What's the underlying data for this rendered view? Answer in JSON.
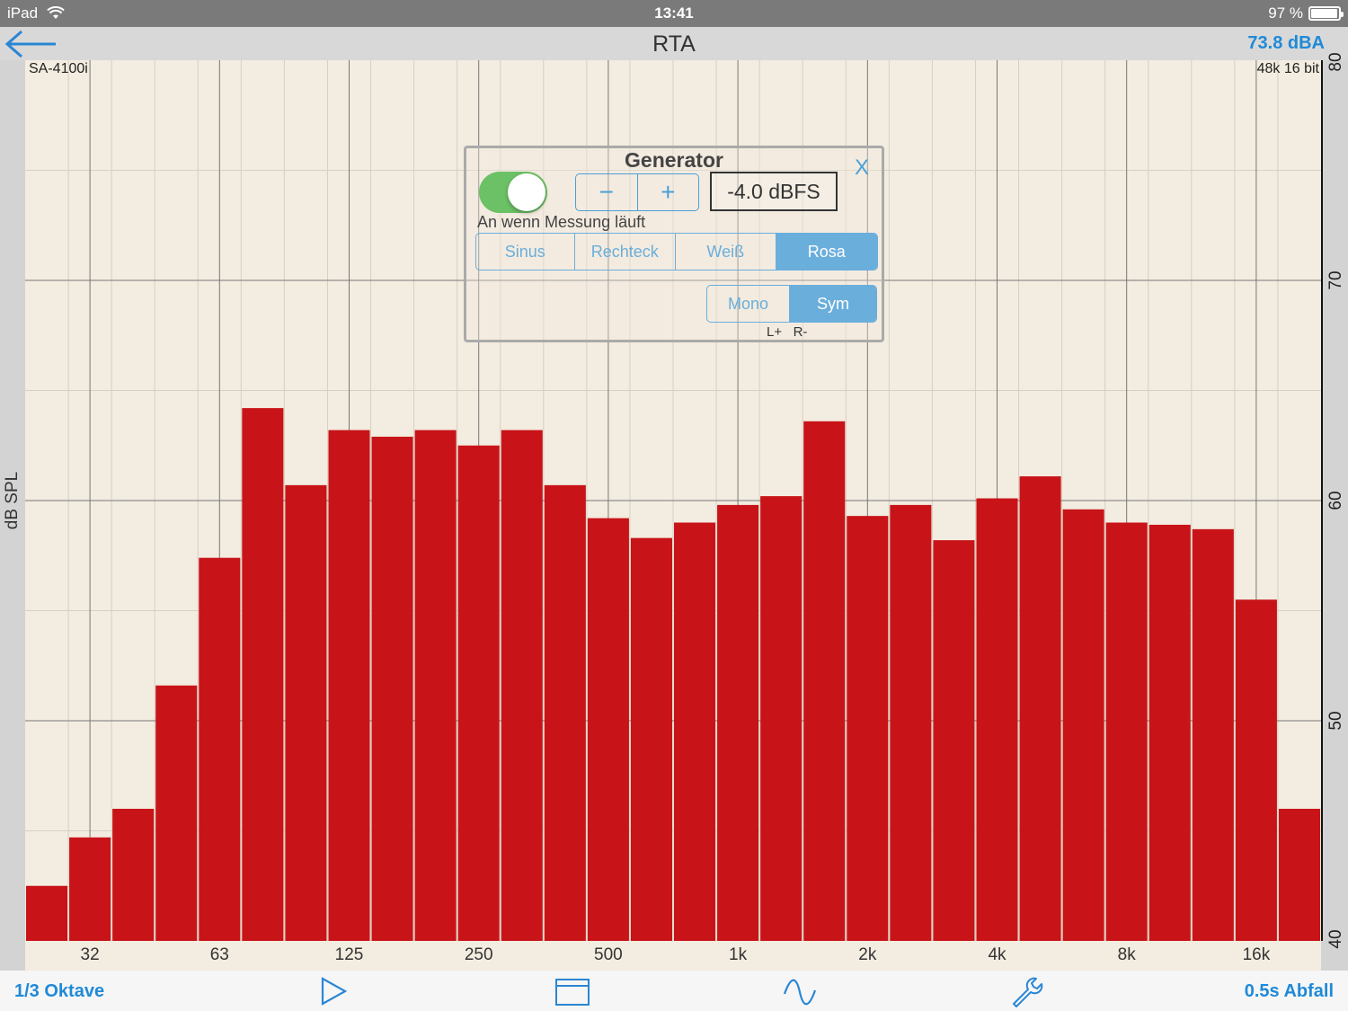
{
  "status_bar": {
    "device": "iPad",
    "time": "13:41",
    "battery": "97 %",
    "battery_level": 0.97
  },
  "nav": {
    "title": "RTA",
    "level": "73.8 dBA"
  },
  "plot": {
    "device_label": "SA-4100i",
    "format_label": "48k 16 bit",
    "y_axis_label": "dB SPL"
  },
  "generator": {
    "title": "Generator",
    "close_label": "X",
    "enabled": true,
    "on_label": "An wenn Messung läuft",
    "minus": "−",
    "plus": "+",
    "level": "-4.0 dBFS",
    "waveforms": [
      "Sinus",
      "Rechteck",
      "Weiß",
      "Rosa"
    ],
    "selected_waveform": "Rosa",
    "channels": [
      "Mono",
      "Sym"
    ],
    "selected_channel": "Sym",
    "channel_hint": "L+   R-"
  },
  "toolbar": {
    "resolution": "1/3 Oktave",
    "decay": "0.5s Abfall",
    "icons": [
      "play-icon",
      "folder-icon",
      "wave-icon",
      "wrench-icon"
    ]
  },
  "chart_data": {
    "type": "bar",
    "ylabel": "dB SPL",
    "ylim": [
      40,
      80
    ],
    "yticks": [
      40,
      50,
      60,
      70,
      80
    ],
    "x_tick_labels": [
      "32",
      "63",
      "125",
      "250",
      "500",
      "1k",
      "2k",
      "4k",
      "8k",
      "16k"
    ],
    "bar_color": "#c81418",
    "values": [
      42.5,
      44.7,
      46.0,
      51.6,
      57.4,
      64.2,
      60.7,
      63.2,
      62.9,
      63.2,
      62.5,
      63.2,
      60.7,
      59.2,
      58.3,
      59.0,
      59.8,
      60.2,
      63.6,
      59.3,
      59.8,
      58.2,
      60.1,
      61.1,
      59.6,
      59.0,
      58.9,
      58.7,
      55.5,
      46.0
    ]
  }
}
